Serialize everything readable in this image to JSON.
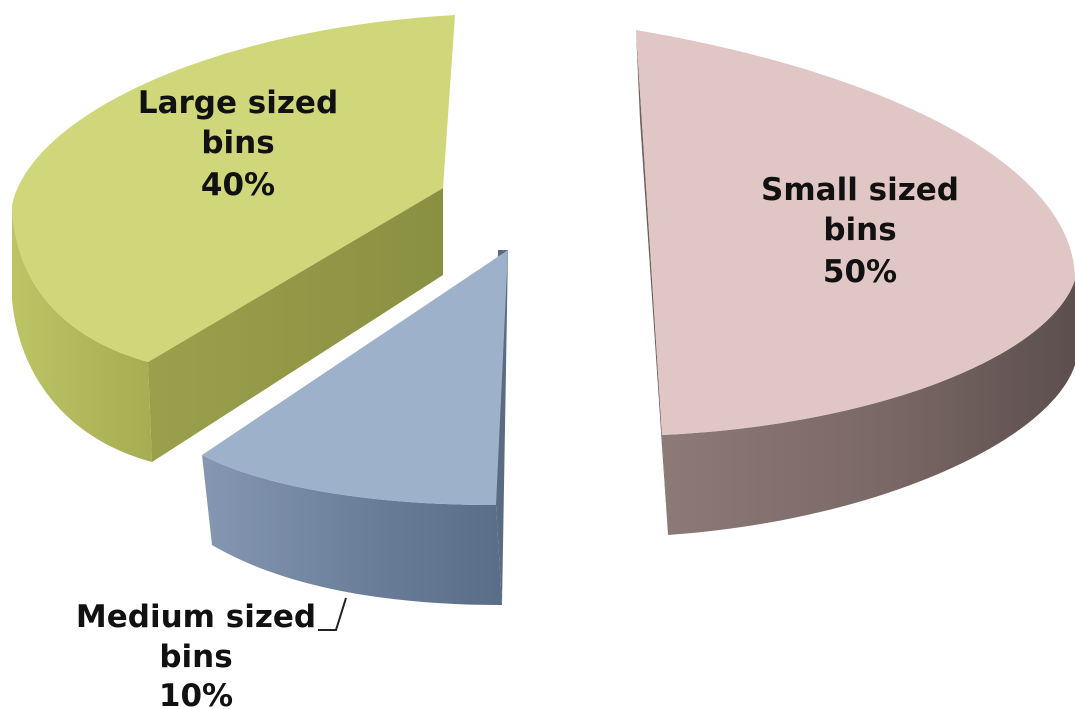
{
  "chart_data": {
    "type": "pie",
    "variant": "3d-exploded",
    "slices": [
      {
        "label_lines": [
          "Small sized",
          "bins",
          "50%"
        ],
        "value": 50,
        "color": "#e0c6c4",
        "side_color": "#8a7572"
      },
      {
        "label_lines": [
          "Medium sized",
          "bins",
          "10%"
        ],
        "value": 10,
        "color": "#9eb1cb",
        "side_color": "#627592"
      },
      {
        "label_lines": [
          "Large sized",
          "bins",
          "40%"
        ],
        "value": 40,
        "color": "#cfd77a",
        "side_color": "#a4aa4f"
      }
    ],
    "legend": "none"
  }
}
